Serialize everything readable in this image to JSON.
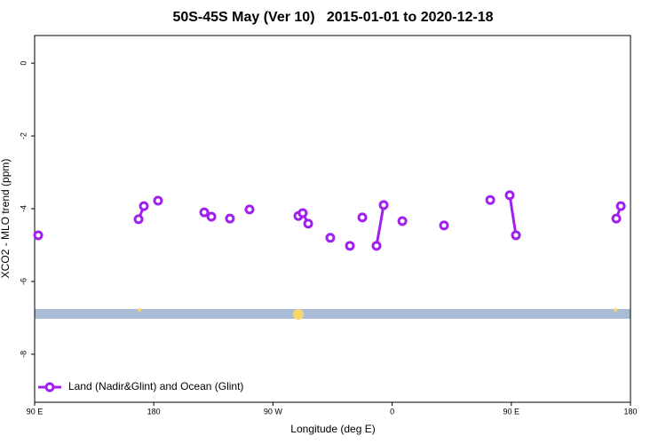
{
  "chart_data": {
    "type": "line",
    "title": "50S-45S May (Ver 10)   2015-01-01 to 2020-12-18",
    "x_label": "Longitude (deg E)",
    "y_label": "XCO2 - MLO trend (ppm)",
    "xlim": [
      90,
      540
    ],
    "xticks": [
      {
        "value": 90,
        "label": "90 E"
      },
      180,
      {
        "value": 270,
        "label": "90 W"
      },
      {
        "value": 360,
        "label": "0"
      },
      {
        "value": 450,
        "label": "90 E"
      },
      {
        "value": 540,
        "label": "180"
      }
    ],
    "ylim": [
      -9.32,
      0.76
    ],
    "yticks": [
      0,
      -2,
      -4,
      -6,
      -8
    ],
    "legend": "bottom-left",
    "series": [
      {
        "name": "Land (Nadir&Glint) and Ocean (Glint)",
        "color": "#a020f0",
        "x": [
          92.7,
          null,
          168.5,
          172.5,
          null,
          183.2,
          null,
          218.1,
          223.5,
          null,
          237.5,
          null,
          252.3,
          null,
          289.2,
          292.5,
          296.6,
          null,
          313.3,
          null,
          328.1,
          null,
          337.5,
          null,
          348.2,
          353.6,
          null,
          367.7,
          null,
          399.2,
          null,
          434.1,
          null,
          448.8,
          453.5,
          null,
          529.3,
          532.7
        ],
        "values": [
          -4.73,
          null,
          -4.29,
          -3.93,
          null,
          -3.78,
          null,
          -4.1,
          -4.22,
          null,
          -4.27,
          null,
          -4.02,
          null,
          -4.2,
          -4.12,
          -4.41,
          null,
          -4.8,
          null,
          -5.02,
          null,
          -4.24,
          null,
          -5.02,
          -3.9,
          null,
          -4.34,
          null,
          -4.46,
          null,
          -3.76,
          null,
          -3.63,
          -4.73,
          null,
          -4.27,
          -3.93
        ]
      }
    ]
  }
}
